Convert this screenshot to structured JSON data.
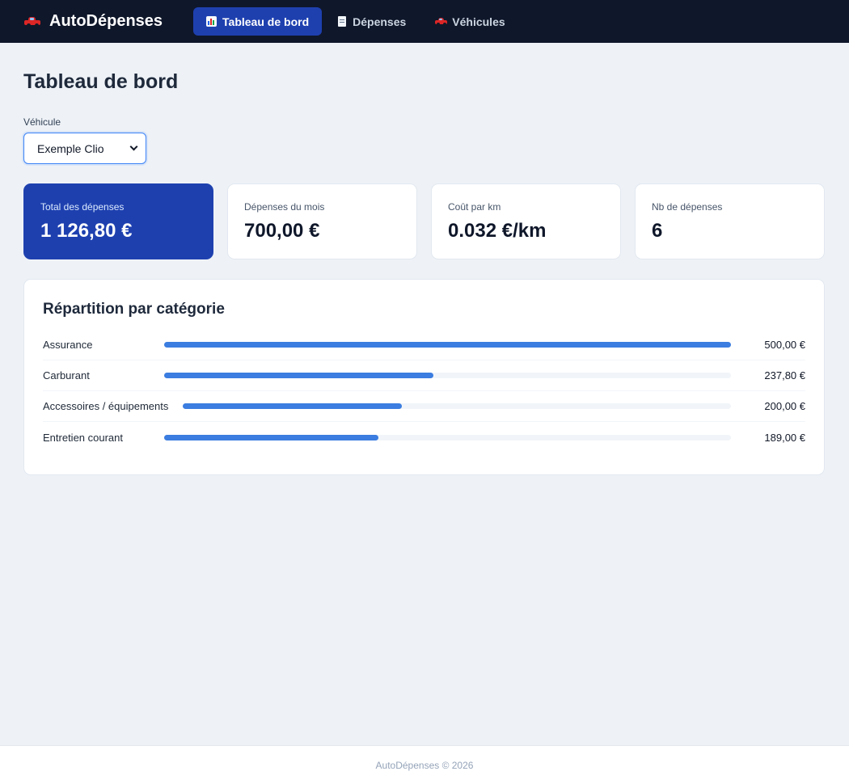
{
  "app": {
    "name": "AutoDépenses"
  },
  "nav": {
    "tabs": [
      {
        "label": "Tableau de bord",
        "icon": "chart-icon",
        "active": true
      },
      {
        "label": "Dépenses",
        "icon": "receipt-icon",
        "active": false
      },
      {
        "label": "Véhicules",
        "icon": "car-icon",
        "active": false
      }
    ]
  },
  "page": {
    "title": "Tableau de bord"
  },
  "vehicle_select": {
    "label": "Véhicule",
    "selected": "Exemple Clio"
  },
  "stats": [
    {
      "label": "Total des dépenses",
      "value": "1 126,80 €"
    },
    {
      "label": "Dépenses du mois",
      "value": "700,00 €"
    },
    {
      "label": "Coût par km",
      "value": "0.032 €/km"
    },
    {
      "label": "Nb de dépenses",
      "value": "6"
    }
  ],
  "breakdown": {
    "title": "Répartition par catégorie",
    "categories": [
      {
        "name": "Assurance",
        "amount": "500,00 €",
        "amount_value": 500.0,
        "fill_fraction": 1.0
      },
      {
        "name": "Carburant",
        "amount": "237,80 €",
        "amount_value": 237.8,
        "fill_fraction": 0.4756
      },
      {
        "name": "Accessoires / équipements",
        "amount": "200,00 €",
        "amount_value": 200.0,
        "fill_fraction": 0.4
      },
      {
        "name": "Entretien courant",
        "amount": "189,00 €",
        "amount_value": 189.0,
        "fill_fraction": 0.378
      }
    ]
  },
  "footer": {
    "text": "AutoDépenses © 2026"
  },
  "colors": {
    "nav_bg": "#0f172a",
    "accent": "#1e40af",
    "bar": "#3b7de0",
    "page_bg": "#eef2f7"
  }
}
